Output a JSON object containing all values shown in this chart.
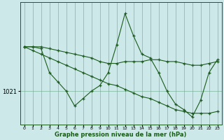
{
  "bg_color": "#cce8e8",
  "grid_color": "#66aa88",
  "line_color": "#1a5c1a",
  "xlabel": "Graphe pression niveau de la mer (hPa)",
  "y_tick_value": 1021,
  "x_ticks": [
    0,
    1,
    2,
    3,
    4,
    5,
    6,
    7,
    8,
    9,
    10,
    11,
    12,
    13,
    14,
    15,
    16,
    17,
    18,
    19,
    20,
    21,
    22,
    23
  ],
  "line1": [
    1023.4,
    1023.4,
    1023.4,
    1023.3,
    1023.2,
    1023.1,
    1023.0,
    1022.9,
    1022.8,
    1022.6,
    1022.5,
    1022.5,
    1022.6,
    1022.6,
    1022.6,
    1022.7,
    1022.7,
    1022.6,
    1022.6,
    1022.5,
    1022.4,
    1022.4,
    1022.5,
    1022.6
  ],
  "line2": [
    1023.4,
    1023.4,
    1023.3,
    1022.0,
    1021.5,
    1021.0,
    1020.2,
    1020.6,
    1021.0,
    1021.3,
    1022.0,
    1023.5,
    1025.2,
    1024.0,
    1023.0,
    1022.8,
    1022.0,
    1021.0,
    1020.3,
    1020.0,
    1019.6,
    1020.5,
    1022.0,
    1022.7
  ],
  "line3": [
    1023.4,
    1023.2,
    1023.0,
    1022.8,
    1022.6,
    1022.4,
    1022.2,
    1022.0,
    1021.8,
    1021.6,
    1021.4,
    1021.3,
    1021.1,
    1020.9,
    1020.7,
    1020.6,
    1020.4,
    1020.2,
    1020.0,
    1019.9,
    1019.8,
    1019.8,
    1019.8,
    1019.9
  ],
  "ylim": [
    1019.2,
    1025.8
  ],
  "figsize": [
    3.2,
    2.0
  ],
  "dpi": 100,
  "xlabel_fontsize": 6.0,
  "ytick_fontsize": 6.0,
  "xtick_fontsize": 4.5
}
